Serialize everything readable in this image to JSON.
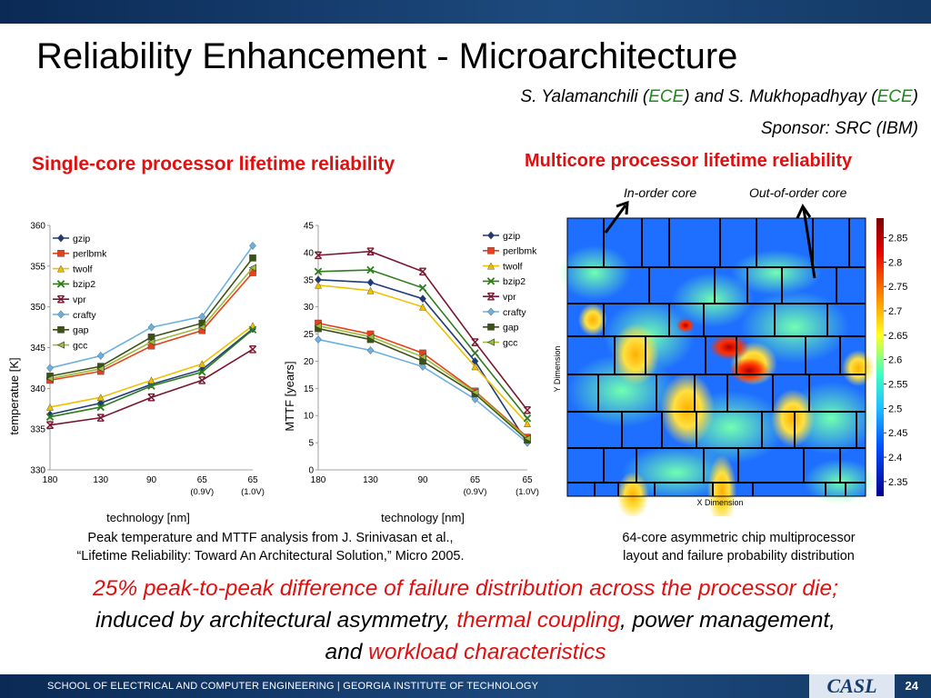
{
  "slide": {
    "title": "Reliability Enhancement - Microarchitecture",
    "authors": {
      "part1": "S. Yalamanchili (",
      "dept1": "ECE",
      "part2": ") and S. Mukhopadhyay (",
      "dept2": "ECE",
      "part3": ")"
    },
    "sponsor": "Sponsor: SRC (IBM)",
    "left_heading": "Single-core processor lifetime reliability",
    "right_heading": "Multicore processor lifetime reliability",
    "inorder_label": "In-order core",
    "ooo_label": "Out-of-order core",
    "left_caption_line1": "Peak temperature and MTTF analysis from J. Srinivasan et al.,",
    "left_caption_line2": "“Lifetime Reliability: Toward An Architectural Solution,” Micro 2005.",
    "right_caption_line1": "64-core asymmetric chip multiprocessor",
    "right_caption_line2": "layout and failure probability distribution",
    "bottom": {
      "r1": "25% peak-to-peak difference of failure distribution across the processor die;",
      "b1": "induced by architectural asymmetry, ",
      "r2": "thermal coupling",
      "b2": ", power management,",
      "b3": "and ",
      "r3": "workload characteristics"
    },
    "footer": "SCHOOL OF ELECTRICAL AND COMPUTER ENGINEERING | GEORGIA INSTITUTE OF TECHNOLOGY",
    "logo": "CASL",
    "page": "24",
    "colors": {
      "accent_red": "#e01010",
      "ece_green": "#1c8a1c",
      "bar_navy": "#0b2a55"
    }
  },
  "chart_data": [
    {
      "type": "line",
      "ylabel": "temperatue [K]",
      "xlabel": "technology [nm]",
      "categories": [
        "180",
        "130",
        "90",
        "65",
        "65"
      ],
      "category_sublabels": [
        "",
        "",
        "",
        "(0.9V)",
        "(1.0V)"
      ],
      "ylim": [
        330,
        360
      ],
      "yticks": [
        330,
        335,
        340,
        345,
        350,
        355,
        360
      ],
      "grid": false,
      "legend": "top-left",
      "series": [
        {
          "name": "gzip",
          "color": "#1f3a7a",
          "marker": "diamond",
          "values": [
            336.8,
            338.2,
            340.5,
            342.3,
            347.3
          ]
        },
        {
          "name": "perlbmk",
          "color": "#e8401c",
          "marker": "square",
          "values": [
            341.0,
            342.1,
            345.2,
            347.1,
            354.2
          ]
        },
        {
          "name": "twolf",
          "color": "#f0c000",
          "marker": "triangle",
          "values": [
            337.7,
            338.9,
            341.0,
            343.0,
            347.7
          ]
        },
        {
          "name": "bzip2",
          "color": "#2e7d1a",
          "marker": "x",
          "values": [
            336.5,
            337.7,
            340.3,
            342.0,
            347.2
          ]
        },
        {
          "name": "vpr",
          "color": "#7a1630",
          "marker": "bar-x",
          "values": [
            335.5,
            336.4,
            338.9,
            341.0,
            344.8
          ]
        },
        {
          "name": "crafty",
          "color": "#6ab0e0",
          "marker": "diamond",
          "values": [
            342.5,
            344.0,
            347.5,
            348.8,
            357.5
          ]
        },
        {
          "name": "gap",
          "color": "#3b5216",
          "marker": "square",
          "values": [
            341.5,
            342.7,
            346.3,
            348.0,
            356.0
          ]
        },
        {
          "name": "gcc",
          "color": "#9bbb3b",
          "marker": "tri-left",
          "values": [
            341.2,
            342.4,
            345.7,
            347.5,
            354.8
          ]
        }
      ]
    },
    {
      "type": "line",
      "ylabel": "MTTF [years]",
      "xlabel": "technology [nm]",
      "categories": [
        "180",
        "130",
        "90",
        "65",
        "65"
      ],
      "category_sublabels": [
        "",
        "",
        "",
        "(0.9V)",
        "(1.0V)"
      ],
      "ylim": [
        0,
        45
      ],
      "yticks": [
        0,
        5,
        10,
        15,
        20,
        25,
        30,
        35,
        40,
        45
      ],
      "grid": false,
      "legend": "top-right",
      "series": [
        {
          "name": "gzip",
          "color": "#1f3a7a",
          "marker": "diamond",
          "values": [
            35.0,
            34.5,
            31.5,
            20.0,
            5.0
          ]
        },
        {
          "name": "perlbmk",
          "color": "#e8401c",
          "marker": "square",
          "values": [
            27.0,
            25.0,
            21.5,
            14.5,
            6.0
          ]
        },
        {
          "name": "twolf",
          "color": "#f0c000",
          "marker": "triangle",
          "values": [
            34.0,
            33.0,
            30.0,
            19.0,
            8.5
          ]
        },
        {
          "name": "bzip2",
          "color": "#2e7d1a",
          "marker": "x",
          "values": [
            36.5,
            36.8,
            33.5,
            21.5,
            9.5
          ]
        },
        {
          "name": "vpr",
          "color": "#7a1630",
          "marker": "bar-x",
          "values": [
            39.5,
            40.2,
            36.5,
            23.5,
            11.0
          ]
        },
        {
          "name": "crafty",
          "color": "#6ab0e0",
          "marker": "diamond",
          "values": [
            24.0,
            22.0,
            19.0,
            13.0,
            5.0
          ]
        },
        {
          "name": "gap",
          "color": "#3b5216",
          "marker": "square",
          "values": [
            26.0,
            24.0,
            20.0,
            14.0,
            5.5
          ]
        },
        {
          "name": "gcc",
          "color": "#9bbb3b",
          "marker": "tri-left",
          "values": [
            26.5,
            24.5,
            20.8,
            14.3,
            5.8
          ]
        }
      ]
    },
    {
      "type": "heatmap",
      "xlabel": "X Dimension",
      "ylabel": "Y Dimension",
      "colorbar_ticks": [
        "2.85",
        "2.8",
        "2.75",
        "2.7",
        "2.65",
        "2.6",
        "2.55",
        "2.5",
        "2.45",
        "2.4",
        "2.35"
      ],
      "colorbar_range": [
        2.32,
        2.89
      ]
    }
  ]
}
